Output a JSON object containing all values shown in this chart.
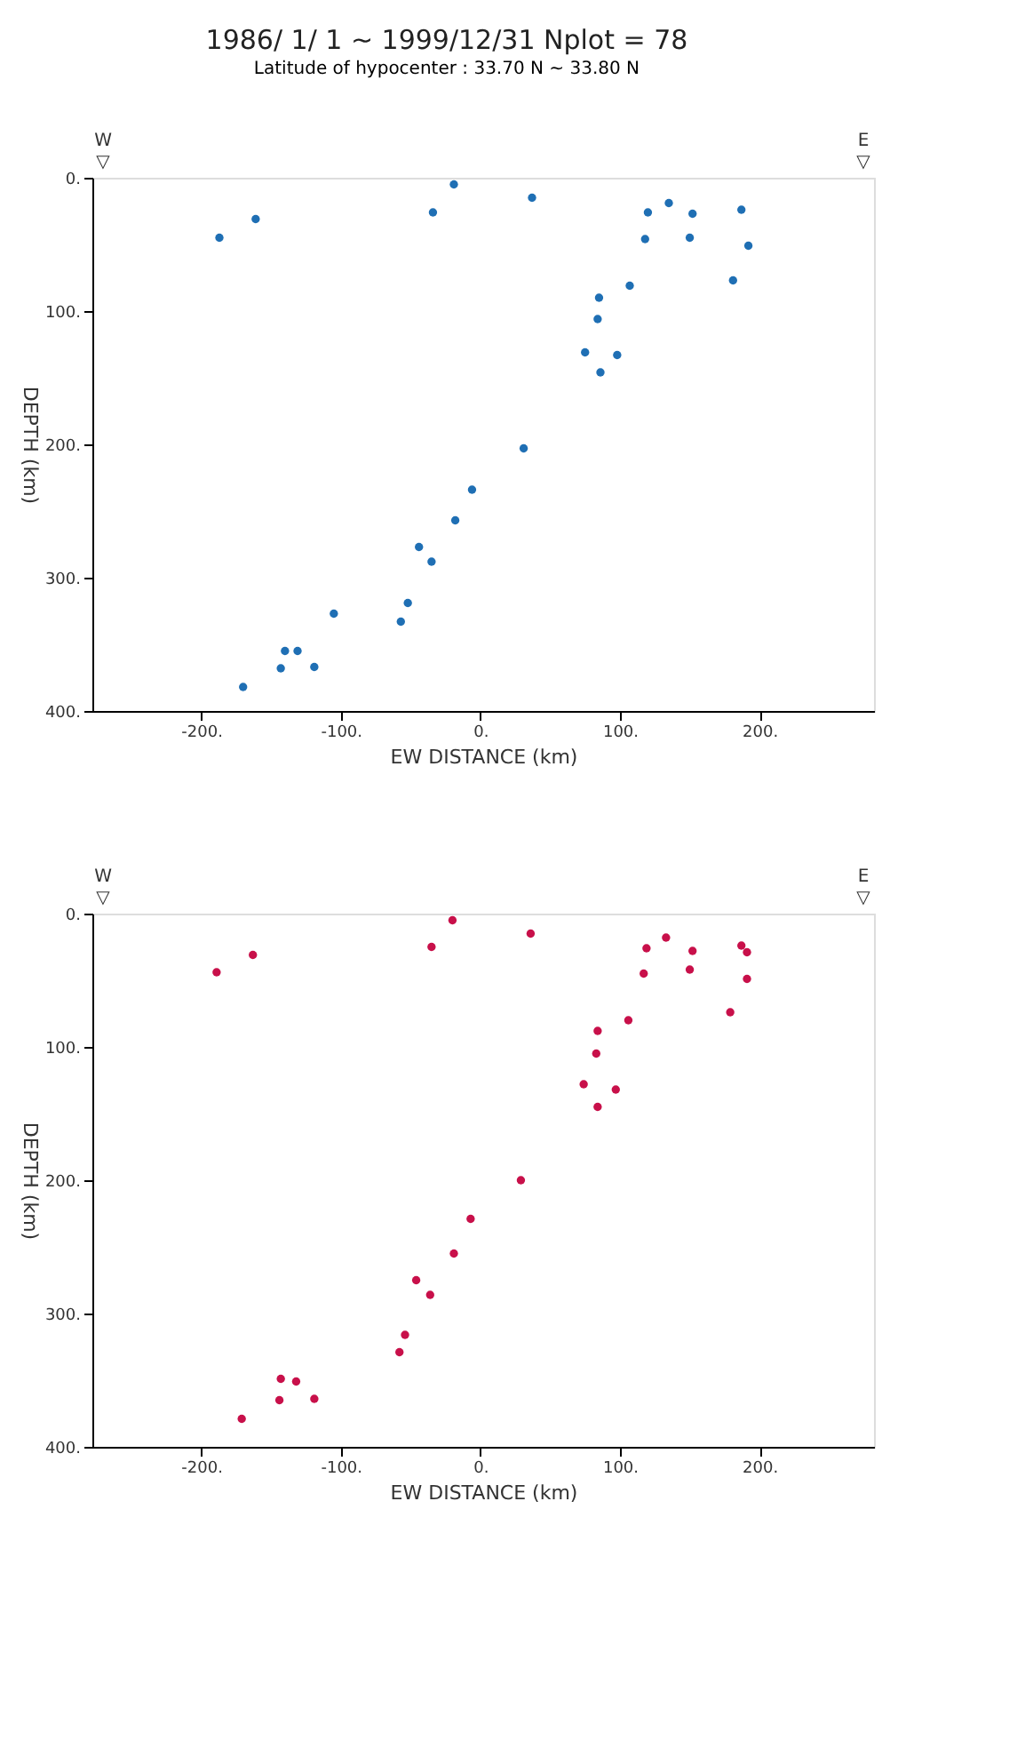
{
  "chart_data": [
    {
      "type": "scatter",
      "title": "1986/ 1/ 1 ~ 1999/12/31     Nplot = 78",
      "subtitle": "Latitude of hypocenter : 33.70 N ~ 33.80 N",
      "xlabel": "EW DISTANCE (km)",
      "ylabel": "DEPTH (km)",
      "annotations": [
        "W",
        "▽",
        "E",
        "▽"
      ],
      "marker": "circle",
      "grid": false,
      "xlim": [
        -278,
        282
      ],
      "ylim": [
        400,
        0
      ],
      "xticks": [
        {
          "value": -200,
          "label": "-200."
        },
        {
          "value": -100,
          "label": "-100."
        },
        {
          "value": 0,
          "label": "0."
        },
        {
          "value": 100,
          "label": "100."
        },
        {
          "value": 200,
          "label": "200."
        }
      ],
      "yticks": [
        {
          "value": 0,
          "label": "0."
        },
        {
          "value": 100,
          "label": "100."
        },
        {
          "value": 200,
          "label": "200."
        },
        {
          "value": 300,
          "label": "300."
        },
        {
          "value": 400,
          "label": "400."
        }
      ],
      "x": [
        -187,
        -161,
        -19,
        -34,
        -6,
        -18,
        -44,
        -35,
        -52,
        -57,
        -105,
        -140,
        -131,
        -143,
        -119,
        -170,
        37,
        120,
        135,
        152,
        187,
        118,
        150,
        192,
        181,
        107,
        85,
        84,
        75,
        98,
        86,
        31
      ],
      "series": [
        {
          "color": "#1f6fb4",
          "values": [
            45,
            31,
            5,
            26,
            234,
            257,
            277,
            288,
            319,
            333,
            327,
            355,
            355,
            368,
            367,
            382,
            15,
            26,
            19,
            27,
            24,
            46,
            45,
            51,
            77,
            81,
            90,
            106,
            131,
            133,
            146,
            203
          ]
        }
      ]
    },
    {
      "type": "scatter",
      "xlabel": "EW DISTANCE (km)",
      "ylabel": "DEPTH (km)",
      "annotations": [
        "W",
        "▽",
        "E",
        "▽"
      ],
      "marker": "circle",
      "grid": false,
      "xlim": [
        -278,
        282
      ],
      "ylim": [
        400,
        0
      ],
      "xticks": [
        {
          "value": -200,
          "label": "-200."
        },
        {
          "value": -100,
          "label": "-100."
        },
        {
          "value": 0,
          "label": "0."
        },
        {
          "value": 100,
          "label": "100."
        },
        {
          "value": 200,
          "label": "200."
        }
      ],
      "yticks": [
        {
          "value": 0,
          "label": "0."
        },
        {
          "value": 100,
          "label": "100."
        },
        {
          "value": 200,
          "label": "200."
        },
        {
          "value": 300,
          "label": "300."
        },
        {
          "value": 400,
          "label": "400."
        }
      ],
      "x": [
        -189,
        -163,
        -20,
        -35,
        -7,
        -19,
        -46,
        -36,
        -54,
        -58,
        -143,
        -132,
        -144,
        -119,
        -171,
        36,
        119,
        133,
        152,
        187,
        191,
        117,
        150,
        191,
        179,
        106,
        84,
        83,
        74,
        97,
        84,
        29
      ],
      "series": [
        {
          "color": "#c8104a",
          "values": [
            44,
            31,
            5,
            25,
            229,
            255,
            275,
            286,
            316,
            329,
            349,
            351,
            365,
            364,
            379,
            15,
            26,
            18,
            28,
            24,
            29,
            45,
            42,
            49,
            74,
            80,
            88,
            105,
            128,
            132,
            145,
            200
          ]
        }
      ]
    }
  ]
}
